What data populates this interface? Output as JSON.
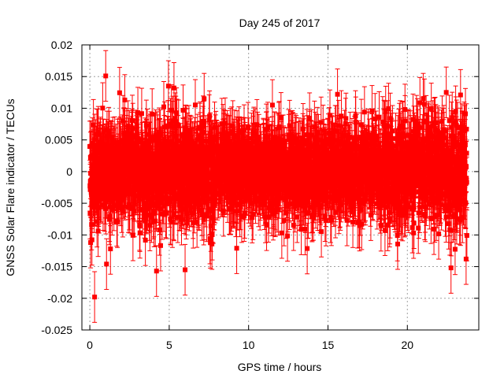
{
  "chart_data": {
    "type": "scatter",
    "title": "Day 245 of 2017",
    "xlabel": "GPS time / hours",
    "ylabel": "GNSS Solar Flare indicator / TECUs",
    "xlim": [
      -0.5,
      24.5
    ],
    "ylim": [
      -0.025,
      0.02
    ],
    "x_ticks": [
      0,
      5,
      10,
      15,
      20
    ],
    "x_tick_labels": [
      "0",
      "5",
      "10",
      "15",
      "20"
    ],
    "y_ticks": [
      -0.025,
      -0.02,
      -0.015,
      -0.01,
      -0.005,
      0,
      0.005,
      0.01,
      0.015,
      0.02
    ],
    "y_tick_labels": [
      "-0.025",
      "-0.02",
      "-0.015",
      "-0.01",
      "-0.005",
      "0",
      "0.005",
      "0.01",
      "0.015",
      "0.02"
    ],
    "grid": true,
    "legend": "none",
    "series": [
      {
        "name": "indicator",
        "color": "#ff0000",
        "marker": "square",
        "error_bars": true,
        "x_range": [
          0,
          23.75
        ],
        "x_step_hours": 0.0083333,
        "error_half_width": 0.004,
        "noise_sd": 0.0038,
        "outliers": [
          {
            "x": 0.05,
            "y": -0.0112
          },
          {
            "x": 0.3,
            "y": -0.0198
          },
          {
            "x": 1.0,
            "y": 0.0151
          },
          {
            "x": 1.05,
            "y": -0.0146
          },
          {
            "x": 1.3,
            "y": -0.0122
          },
          {
            "x": 2.2,
            "y": 0.0113
          },
          {
            "x": 4.2,
            "y": -0.0157
          },
          {
            "x": 4.95,
            "y": 0.0135
          },
          {
            "x": 5.3,
            "y": 0.0132
          },
          {
            "x": 6.0,
            "y": -0.0155
          },
          {
            "x": 7.2,
            "y": 0.0115
          },
          {
            "x": 9.25,
            "y": -0.0121
          },
          {
            "x": 11.5,
            "y": 0.0105
          },
          {
            "x": 15.6,
            "y": 0.0122
          },
          {
            "x": 19.85,
            "y": 0.0098
          },
          {
            "x": 21.0,
            "y": 0.0115
          },
          {
            "x": 22.45,
            "y": 0.0125
          },
          {
            "x": 22.75,
            "y": -0.0152
          },
          {
            "x": 23.35,
            "y": 0.0121
          },
          {
            "x": 23.7,
            "y": -0.0138
          }
        ]
      }
    ]
  }
}
